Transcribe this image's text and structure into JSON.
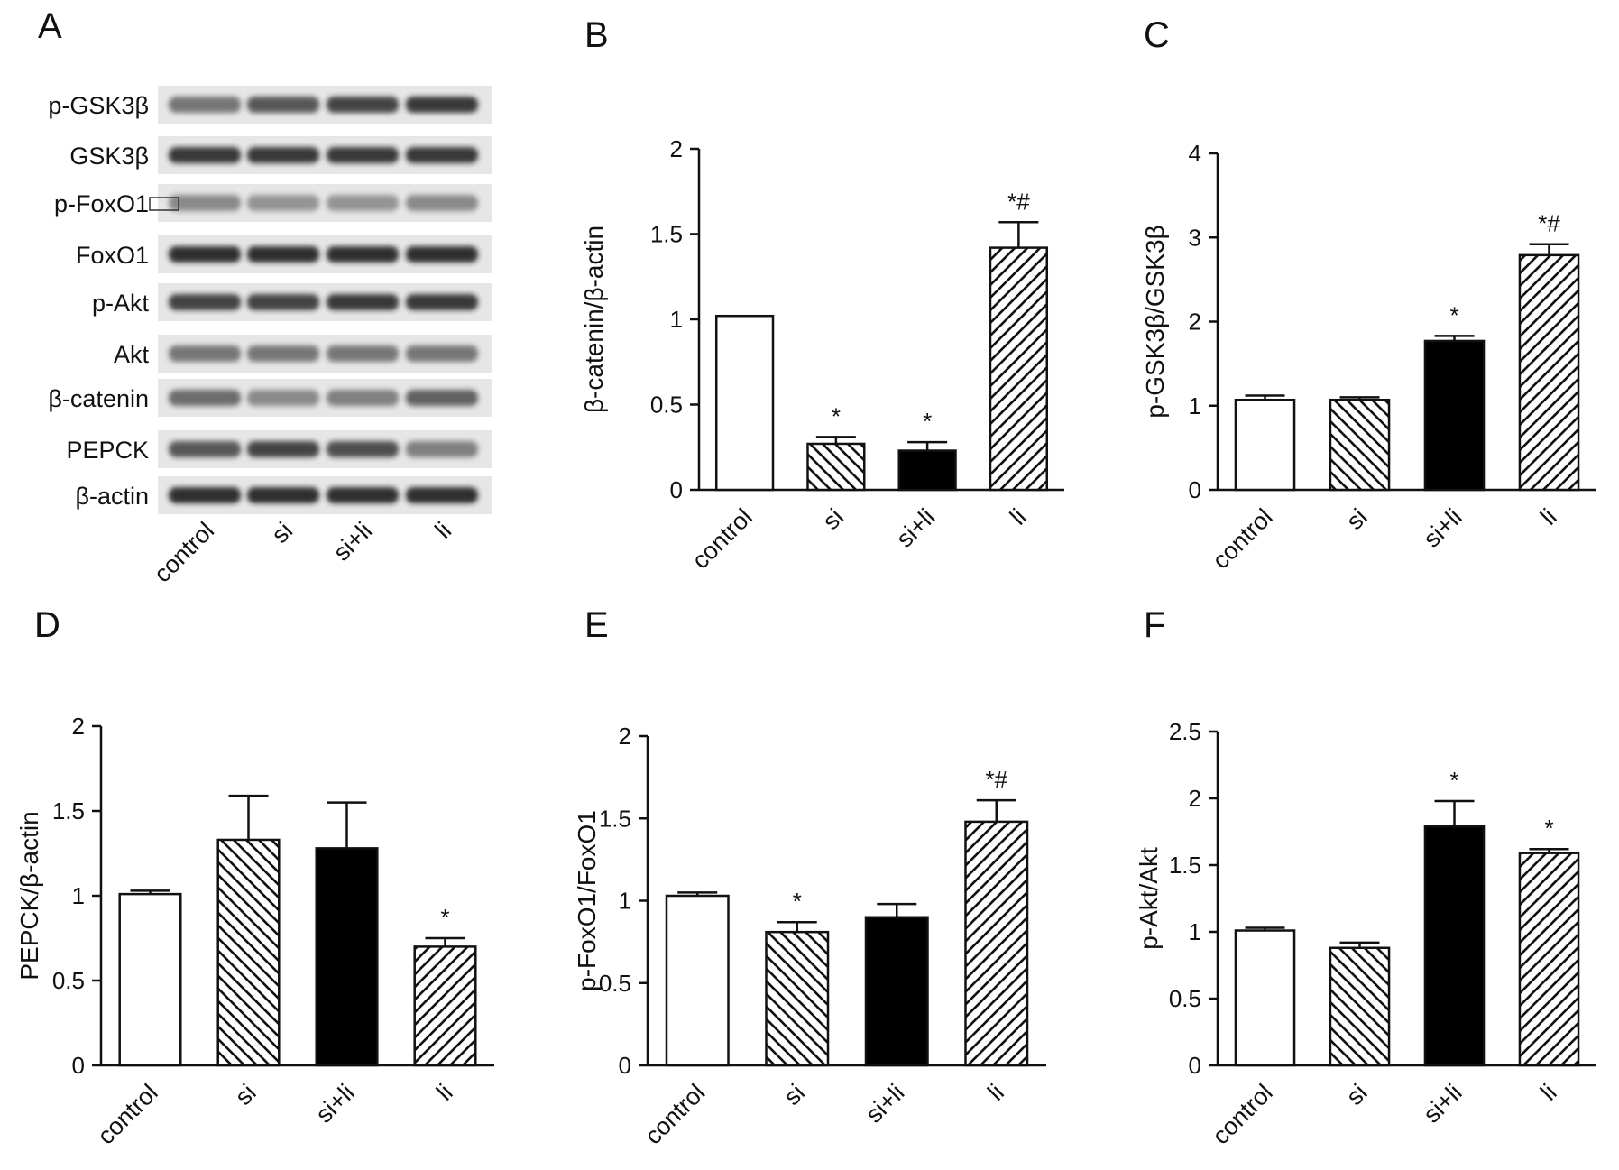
{
  "figure": {
    "hatch_color": "#111111",
    "bar_stroke": "#111111",
    "solid_fill": "#000000",
    "blot_background": "#e6e6e6",
    "band_color": "#1a1a1a"
  },
  "blot": {
    "letter": "A",
    "rows": [
      {
        "label": "p-GSK3β",
        "intensity": [
          0.55,
          0.7,
          0.8,
          0.85
        ]
      },
      {
        "label": "GSK3β",
        "intensity": [
          0.85,
          0.85,
          0.85,
          0.85
        ]
      },
      {
        "label": "p-FoxO1",
        "intensity": [
          0.45,
          0.4,
          0.4,
          0.45
        ]
      },
      {
        "label": "FoxO1",
        "intensity": [
          0.9,
          0.9,
          0.9,
          0.9
        ]
      },
      {
        "label": "p-Akt",
        "intensity": [
          0.8,
          0.8,
          0.85,
          0.85
        ]
      },
      {
        "label": "Akt",
        "intensity": [
          0.55,
          0.55,
          0.55,
          0.55
        ]
      },
      {
        "label": "β-catenin",
        "intensity": [
          0.6,
          0.45,
          0.5,
          0.65
        ]
      },
      {
        "label": "PEPCK",
        "intensity": [
          0.7,
          0.8,
          0.75,
          0.5
        ]
      },
      {
        "label": "β-actin",
        "intensity": [
          0.9,
          0.9,
          0.9,
          0.9
        ]
      }
    ],
    "lanes": [
      "control",
      "si",
      "si+li",
      "li"
    ]
  },
  "chart_data": [
    {
      "panel": "B",
      "type": "bar",
      "categories": [
        "control",
        "si",
        "si+li",
        "li"
      ],
      "values": [
        1.02,
        0.27,
        0.23,
        1.42
      ],
      "errors": [
        0.0,
        0.04,
        0.05,
        0.15
      ],
      "fills": [
        "white",
        "hatch-back",
        "solid",
        "hatch-fwd"
      ],
      "annotations": [
        "",
        "*",
        "*",
        "*#"
      ],
      "ylabel": "β-catenin/β-actin",
      "ylim": [
        0,
        2
      ],
      "yticks": [
        "0",
        "0.5",
        "1",
        "1.5",
        "2"
      ]
    },
    {
      "panel": "C",
      "type": "bar",
      "categories": [
        "control",
        "si",
        "si+li",
        "li"
      ],
      "values": [
        1.07,
        1.07,
        1.77,
        2.79
      ],
      "errors": [
        0.05,
        0.03,
        0.06,
        0.13
      ],
      "fills": [
        "white",
        "hatch-back",
        "solid",
        "hatch-fwd"
      ],
      "annotations": [
        "",
        "",
        "*",
        "*#"
      ],
      "ylabel": "p-GSK3β/GSK3β",
      "ylim": [
        0,
        4
      ],
      "yticks": [
        "0",
        "1",
        "2",
        "3",
        "4"
      ]
    },
    {
      "panel": "D",
      "type": "bar",
      "categories": [
        "control",
        "si",
        "si+li",
        "li"
      ],
      "values": [
        1.01,
        1.33,
        1.28,
        0.7
      ],
      "errors": [
        0.02,
        0.26,
        0.27,
        0.05
      ],
      "fills": [
        "white",
        "hatch-back",
        "solid",
        "hatch-fwd"
      ],
      "annotations": [
        "",
        "",
        "",
        "*"
      ],
      "ylabel": "PEPCK/β-actin",
      "ylim": [
        0,
        2
      ],
      "yticks": [
        "0",
        "0.5",
        "1",
        "1.5",
        "2"
      ]
    },
    {
      "panel": "E",
      "type": "bar",
      "categories": [
        "control",
        "si",
        "si+li",
        "li"
      ],
      "values": [
        1.03,
        0.81,
        0.9,
        1.48
      ],
      "errors": [
        0.02,
        0.06,
        0.08,
        0.13
      ],
      "fills": [
        "white",
        "hatch-back",
        "solid",
        "hatch-fwd"
      ],
      "annotations": [
        "",
        "*",
        "",
        "*#"
      ],
      "ylabel": "p-FoxO1/FoxO1",
      "ylim": [
        0,
        2
      ],
      "yticks": [
        "0",
        "0.5",
        "1",
        "1.5",
        "2"
      ]
    },
    {
      "panel": "F",
      "type": "bar",
      "categories": [
        "control",
        "si",
        "si+li",
        "li"
      ],
      "values": [
        1.01,
        0.88,
        1.79,
        1.59
      ],
      "errors": [
        0.02,
        0.04,
        0.19,
        0.03
      ],
      "fills": [
        "white",
        "hatch-back",
        "solid",
        "hatch-fwd"
      ],
      "annotations": [
        "",
        "",
        "*",
        "*"
      ],
      "ylabel": "p-Akt/Akt",
      "ylim": [
        0,
        2.5
      ],
      "yticks": [
        "0",
        "0.5",
        "1",
        "1.5",
        "2",
        "2.5"
      ]
    }
  ]
}
